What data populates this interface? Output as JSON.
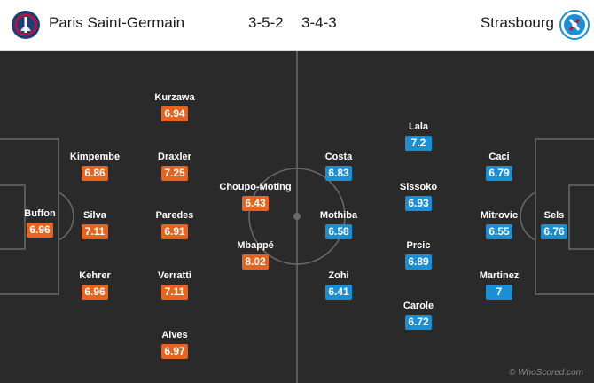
{
  "header": {
    "home_team": "Paris Saint-Germain",
    "home_formation": "3-5-2",
    "away_formation": "3-4-3",
    "away_team": "Strasbourg"
  },
  "colors": {
    "home_rating_bg": "#e8641e",
    "away_rating_bg": "#1a8fd6",
    "pitch": "#2a2a2a"
  },
  "home_players": [
    {
      "name": "Buffon",
      "rating": "6.96"
    },
    {
      "name": "Kimpembe",
      "rating": "6.86"
    },
    {
      "name": "Silva",
      "rating": "7.11"
    },
    {
      "name": "Kehrer",
      "rating": "6.96"
    },
    {
      "name": "Kurzawa",
      "rating": "6.94"
    },
    {
      "name": "Draxler",
      "rating": "7.25"
    },
    {
      "name": "Paredes",
      "rating": "6.91"
    },
    {
      "name": "Verratti",
      "rating": "7.11"
    },
    {
      "name": "Alves",
      "rating": "6.97"
    },
    {
      "name": "Choupo-Moting",
      "rating": "6.43"
    },
    {
      "name": "Mbappé",
      "rating": "8.02"
    }
  ],
  "away_players": [
    {
      "name": "Costa",
      "rating": "6.83"
    },
    {
      "name": "Mothiba",
      "rating": "6.58"
    },
    {
      "name": "Zohi",
      "rating": "6.41"
    },
    {
      "name": "Lala",
      "rating": "7.2"
    },
    {
      "name": "Sissoko",
      "rating": "6.93"
    },
    {
      "name": "Prcic",
      "rating": "6.89"
    },
    {
      "name": "Carole",
      "rating": "6.72"
    },
    {
      "name": "Caci",
      "rating": "6.79"
    },
    {
      "name": "Mitrovic",
      "rating": "6.55"
    },
    {
      "name": "Martinez",
      "rating": "7"
    },
    {
      "name": "Sels",
      "rating": "6.76"
    }
  ],
  "watermark": "© WhoScored.com"
}
